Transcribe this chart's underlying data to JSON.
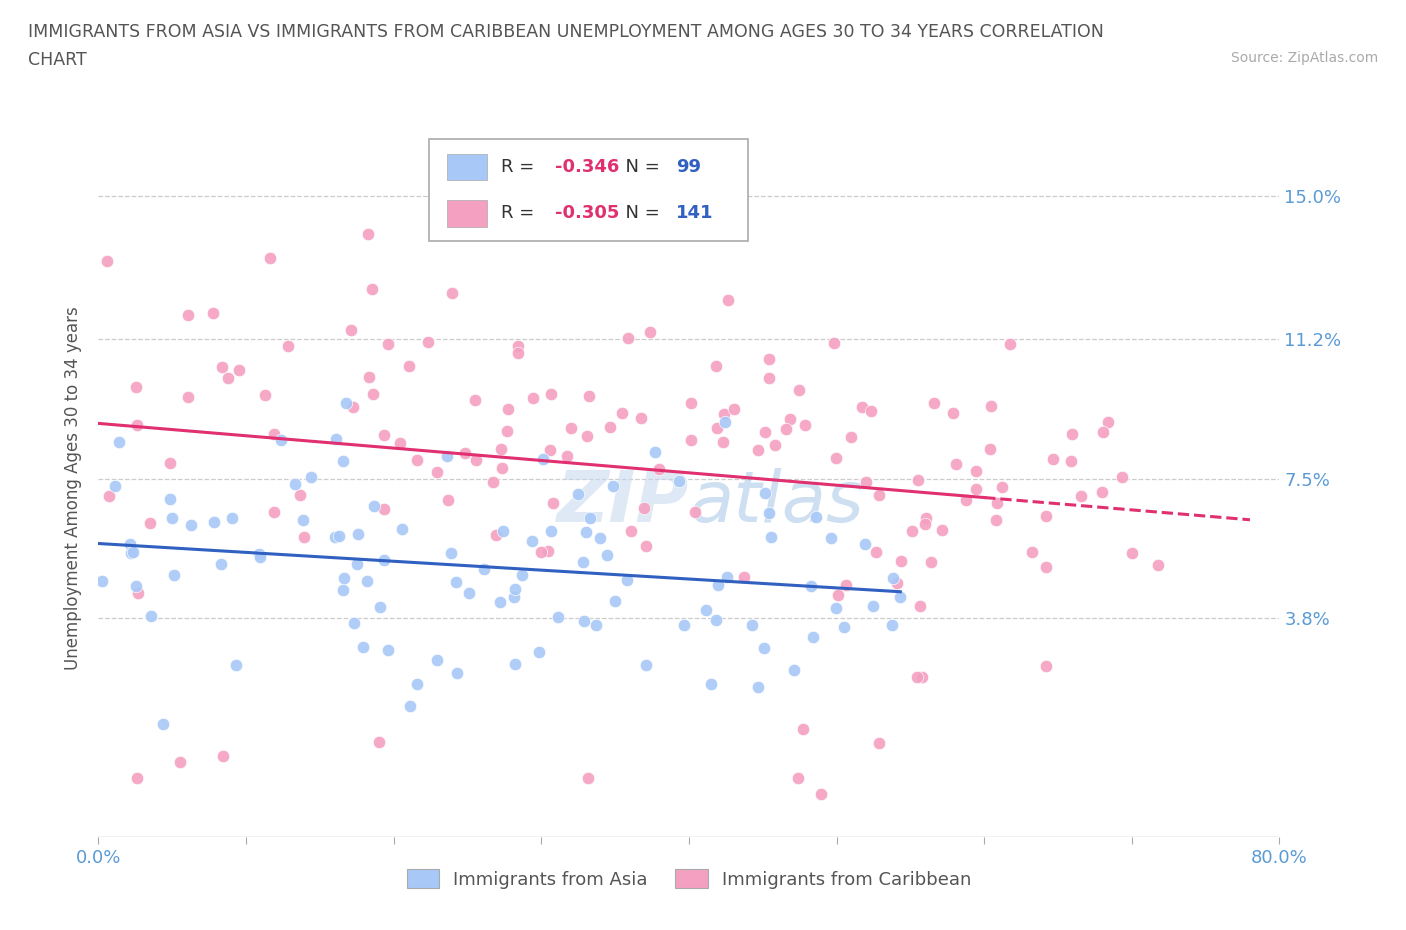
{
  "title_line1": "IMMIGRANTS FROM ASIA VS IMMIGRANTS FROM CARIBBEAN UNEMPLOYMENT AMONG AGES 30 TO 34 YEARS CORRELATION",
  "title_line2": "CHART",
  "source_text": "Source: ZipAtlas.com",
  "ylabel": "Unemployment Among Ages 30 to 34 years",
  "xlim": [
    0.0,
    0.8
  ],
  "ylim": [
    -0.02,
    0.165
  ],
  "yticks": [
    0.038,
    0.075,
    0.112,
    0.15
  ],
  "ytick_labels": [
    "3.8%",
    "7.5%",
    "11.2%",
    "15.0%"
  ],
  "xticks": [
    0.0,
    0.1,
    0.2,
    0.3,
    0.4,
    0.5,
    0.6,
    0.7,
    0.8
  ],
  "xtick_labels": [
    "0.0%",
    "",
    "",
    "",
    "",
    "",
    "",
    "",
    "80.0%"
  ],
  "asia_color": "#a8c8f8",
  "caribbean_color": "#f4a0c0",
  "asia_R": -0.346,
  "asia_N": 99,
  "caribbean_R": -0.305,
  "caribbean_N": 141,
  "trend_color_asia": "#3060c0",
  "trend_color_caribbean": "#e03070",
  "watermark": "ZIPatlas",
  "background_color": "#ffffff",
  "grid_color": "#cccccc",
  "label_color": "#5b9bd5",
  "text_color": "#555555",
  "legend_r_color": "#e03070",
  "legend_n_color": "#3060c0"
}
